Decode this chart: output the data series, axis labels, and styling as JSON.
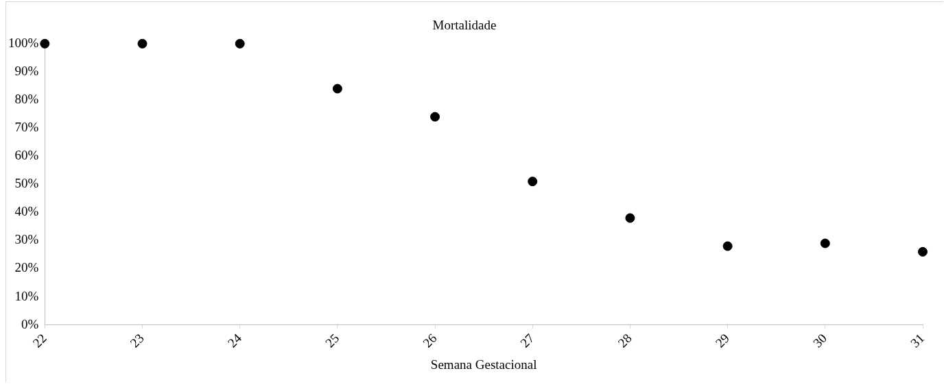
{
  "chart_data": {
    "type": "scatter",
    "title": "Mortalidade",
    "xlabel": "Semana Gestacional",
    "x": [
      22,
      23,
      24,
      25,
      26,
      27,
      28,
      29,
      30,
      31
    ],
    "values": [
      100,
      100,
      100,
      84,
      74,
      51,
      38,
      28,
      29,
      26
    ],
    "color": "#000000",
    "marker": "circle",
    "xlim": [
      22,
      31
    ],
    "xticks": [
      22,
      23,
      24,
      25,
      26,
      27,
      28,
      29,
      30,
      31
    ],
    "ylim": [
      0,
      100
    ],
    "yticks": [
      {
        "value": 0,
        "label": "0%"
      },
      {
        "value": 10,
        "label": "10%"
      },
      {
        "value": 20,
        "label": "20%"
      },
      {
        "value": 30,
        "label": "30%"
      },
      {
        "value": 40,
        "label": "40%"
      },
      {
        "value": 50,
        "label": "50%"
      },
      {
        "value": 60,
        "label": "60%"
      },
      {
        "value": 70,
        "label": "70%"
      },
      {
        "value": 80,
        "label": "80%"
      },
      {
        "value": 90,
        "label": "90%"
      },
      {
        "value": 100,
        "label": "100%"
      }
    ]
  }
}
